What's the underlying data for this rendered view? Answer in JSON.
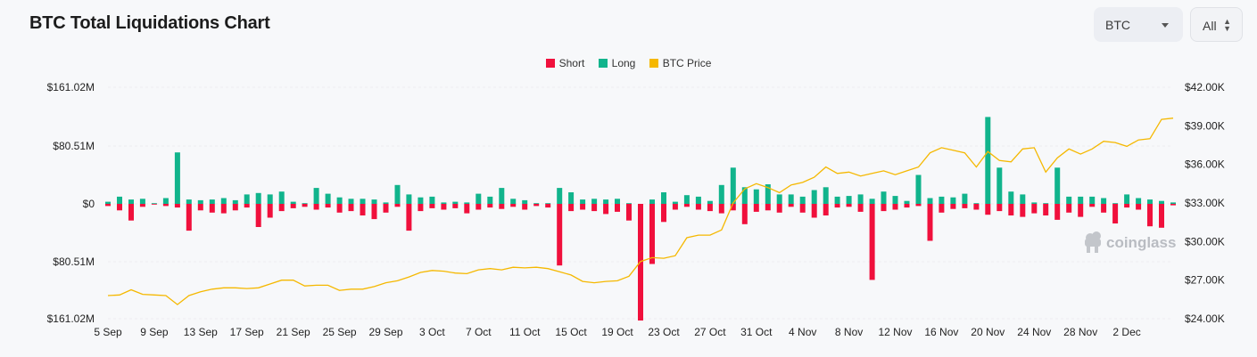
{
  "header": {
    "title": "BTC Total Liquidations Chart"
  },
  "controls": {
    "coin": "BTC",
    "range": "All"
  },
  "legend": [
    {
      "label": "Short",
      "color": "#f0103c"
    },
    {
      "label": "Long",
      "color": "#11b48c"
    },
    {
      "label": "BTC Price",
      "color": "#f5b800"
    }
  ],
  "watermark": "coinglass",
  "chart_data": {
    "type": "bar",
    "title": "BTC Total Liquidations Chart",
    "ylim_left": [
      -161.02,
      161.02
    ],
    "ylim_right": [
      24000,
      42000
    ],
    "left_ticks": [
      "$161.02M",
      "$80.51M",
      "$0",
      "$80.51M",
      "$161.02M"
    ],
    "right_ticks": [
      "$42.00K",
      "$39.00K",
      "$36.00K",
      "$33.00K",
      "$30.00K",
      "$27.00K",
      "$24.00K"
    ],
    "x_ticks": [
      "5 Sep",
      "9 Sep",
      "13 Sep",
      "17 Sep",
      "21 Sep",
      "25 Sep",
      "29 Sep",
      "3 Oct",
      "7 Oct",
      "11 Oct",
      "15 Oct",
      "19 Oct",
      "23 Oct",
      "27 Oct",
      "31 Oct",
      "4 Nov",
      "8 Nov",
      "12 Nov",
      "16 Nov",
      "20 Nov",
      "24 Nov",
      "28 Nov",
      "2 Dec"
    ],
    "series": [
      {
        "name": "Long",
        "unit": "USD M",
        "values": [
          3,
          10,
          6,
          7,
          1,
          8,
          71,
          6,
          5,
          6,
          8,
          5,
          13,
          15,
          13,
          17,
          3,
          1,
          22,
          14,
          9,
          7,
          7,
          6,
          2,
          26,
          13,
          9,
          10,
          2,
          3,
          2,
          14,
          10,
          22,
          7,
          5,
          1,
          1,
          22,
          16,
          6,
          7,
          6,
          7,
          1,
          0,
          6,
          16,
          3,
          12,
          10,
          4,
          26,
          50,
          23,
          20,
          27,
          13,
          13,
          10,
          19,
          23,
          10,
          11,
          13,
          7,
          17,
          11,
          4,
          40,
          8,
          10,
          9,
          14,
          1,
          120,
          50,
          17,
          13,
          2,
          1,
          50,
          10,
          10,
          10,
          8,
          1,
          13,
          8,
          6,
          4,
          2
        ]
      },
      {
        "name": "Short",
        "unit": "USD M",
        "values": [
          3,
          9,
          23,
          4,
          1,
          3,
          5,
          37,
          9,
          12,
          13,
          9,
          5,
          32,
          19,
          10,
          6,
          4,
          8,
          5,
          12,
          10,
          16,
          21,
          12,
          4,
          37,
          10,
          6,
          8,
          6,
          13,
          8,
          5,
          7,
          4,
          8,
          3,
          5,
          85,
          10,
          8,
          10,
          14,
          11,
          23,
          161,
          83,
          25,
          8,
          4,
          8,
          10,
          13,
          9,
          28,
          11,
          9,
          12,
          4,
          12,
          19,
          16,
          5,
          4,
          11,
          105,
          10,
          8,
          5,
          3,
          51,
          12,
          7,
          6,
          8,
          15,
          10,
          16,
          18,
          13,
          16,
          22,
          12,
          18,
          4,
          12,
          27,
          5,
          8,
          31,
          33,
          2
        ]
      },
      {
        "name": "BTC Price",
        "unit": "USD",
        "values": [
          25800,
          25850,
          26250,
          25900,
          25850,
          25800,
          25100,
          25800,
          26100,
          26300,
          26400,
          26400,
          26350,
          26400,
          26700,
          27000,
          27000,
          26550,
          26600,
          26600,
          26200,
          26300,
          26300,
          26500,
          26800,
          26950,
          27250,
          27600,
          27750,
          27700,
          27550,
          27500,
          27800,
          27900,
          27800,
          28000,
          27950,
          28000,
          27900,
          27650,
          27400,
          26900,
          26800,
          26900,
          26950,
          27300,
          28450,
          28750,
          28700,
          28900,
          30300,
          30500,
          30500,
          30900,
          33000,
          34100,
          34500,
          34200,
          33800,
          34400,
          34600,
          35000,
          35800,
          35300,
          35400,
          35100,
          35300,
          35500,
          35200,
          35500,
          35800,
          36900,
          37300,
          37100,
          36900,
          35800,
          37000,
          36300,
          36200,
          37200,
          37300,
          35400,
          36500,
          37200,
          36800,
          37200,
          37800,
          37700,
          37400,
          37900,
          38000,
          39500,
          39600
        ]
      }
    ]
  }
}
